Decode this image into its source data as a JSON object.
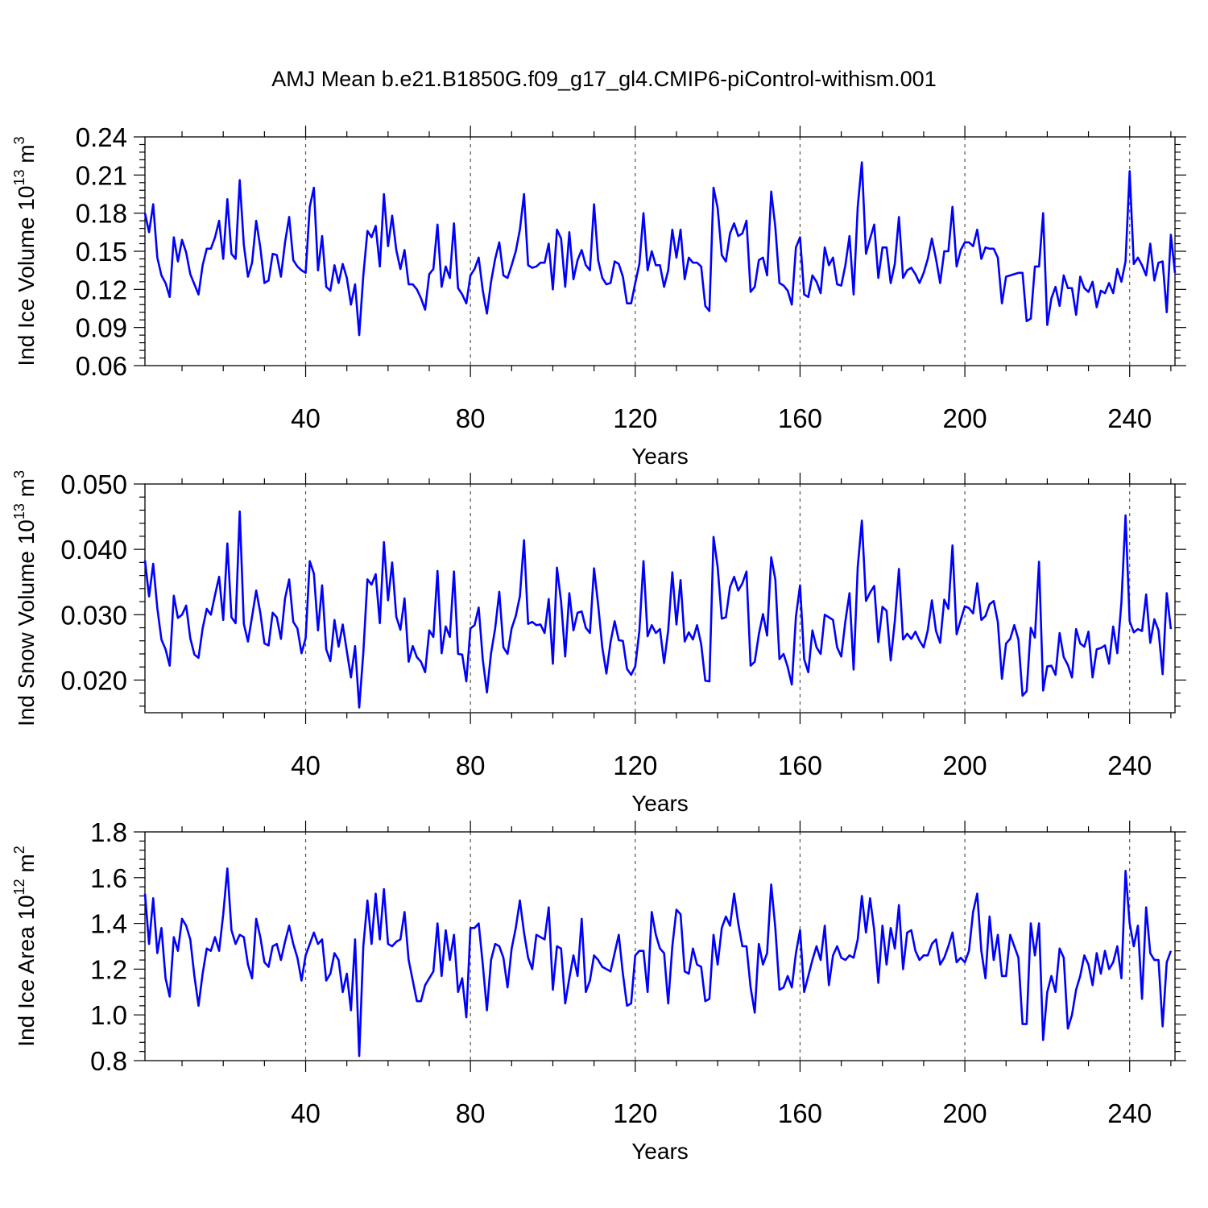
{
  "title": "AMJ Mean b.e21.B1850G.f09_g17_gl4.CMIP6-piControl-withism.001",
  "colors": {
    "line": "#0000ff",
    "axis": "#000000",
    "grid": "#555555"
  },
  "chart_data": [
    {
      "type": "line",
      "ylabel": "Ind Ice Volume 10",
      "ylabel_exp": "13",
      "ylabel_unit": " m",
      "ylabel_unit_exp": "3",
      "xlabel": "Years",
      "xlim": [
        1,
        251
      ],
      "ylim": [
        0.06,
        0.24
      ],
      "x_ticks": [
        40,
        80,
        120,
        160,
        200,
        240
      ],
      "x_tick_labels": [
        "40",
        "80",
        "120",
        "160",
        "200",
        "240"
      ],
      "y_ticks": [
        0.06,
        0.09,
        0.12,
        0.15,
        0.18,
        0.21,
        0.24
      ],
      "y_tick_labels": [
        "0.06",
        "0.09",
        "0.12",
        "0.15",
        "0.18",
        "0.21",
        "0.24"
      ],
      "grid": "dashed vertical at x ticks",
      "series": [
        {
          "name": "Ind Ice Volume",
          "x_start": 1,
          "values": [
            0.18,
            0.165,
            0.187,
            0.145,
            0.131,
            0.125,
            0.114,
            0.161,
            0.142,
            0.159,
            0.149,
            0.132,
            0.124,
            0.116,
            0.139,
            0.152,
            0.152,
            0.161,
            0.174,
            0.144,
            0.191,
            0.148,
            0.144,
            0.206,
            0.155,
            0.13,
            0.141,
            0.174,
            0.153,
            0.125,
            0.127,
            0.148,
            0.147,
            0.13,
            0.157,
            0.177,
            0.143,
            0.138,
            0.135,
            0.133,
            0.185,
            0.2,
            0.135,
            0.162,
            0.122,
            0.119,
            0.139,
            0.125,
            0.14,
            0.129,
            0.108,
            0.124,
            0.084,
            0.131,
            0.166,
            0.161,
            0.17,
            0.138,
            0.195,
            0.154,
            0.178,
            0.151,
            0.136,
            0.151,
            0.124,
            0.124,
            0.12,
            0.113,
            0.104,
            0.132,
            0.136,
            0.171,
            0.122,
            0.138,
            0.129,
            0.172,
            0.121,
            0.116,
            0.109,
            0.131,
            0.136,
            0.145,
            0.119,
            0.101,
            0.126,
            0.144,
            0.157,
            0.131,
            0.129,
            0.139,
            0.15,
            0.167,
            0.195,
            0.139,
            0.137,
            0.138,
            0.141,
            0.141,
            0.156,
            0.12,
            0.167,
            0.16,
            0.122,
            0.165,
            0.128,
            0.143,
            0.151,
            0.139,
            0.135,
            0.187,
            0.143,
            0.129,
            0.124,
            0.125,
            0.142,
            0.14,
            0.13,
            0.109,
            0.109,
            0.125,
            0.14,
            0.18,
            0.135,
            0.15,
            0.139,
            0.139,
            0.122,
            0.135,
            0.167,
            0.145,
            0.167,
            0.128,
            0.145,
            0.141,
            0.141,
            0.138,
            0.107,
            0.103,
            0.2,
            0.184,
            0.147,
            0.142,
            0.164,
            0.172,
            0.162,
            0.164,
            0.174,
            0.118,
            0.122,
            0.143,
            0.145,
            0.131,
            0.197,
            0.169,
            0.125,
            0.123,
            0.119,
            0.108,
            0.153,
            0.161,
            0.116,
            0.114,
            0.131,
            0.126,
            0.117,
            0.153,
            0.139,
            0.145,
            0.124,
            0.123,
            0.139,
            0.162,
            0.116,
            0.185,
            0.22,
            0.148,
            0.16,
            0.171,
            0.129,
            0.153,
            0.153,
            0.125,
            0.14,
            0.177,
            0.129,
            0.135,
            0.137,
            0.132,
            0.125,
            0.133,
            0.144,
            0.16,
            0.144,
            0.125,
            0.15,
            0.15,
            0.185,
            0.138,
            0.151,
            0.157,
            0.157,
            0.154,
            0.167,
            0.144,
            0.153,
            0.152,
            0.152,
            0.145,
            0.109,
            0.13,
            0.131,
            0.132,
            0.133,
            0.133,
            0.095,
            0.097,
            0.138,
            0.138,
            0.18,
            0.092,
            0.113,
            0.122,
            0.107,
            0.131,
            0.121,
            0.121,
            0.1,
            0.13,
            0.121,
            0.118,
            0.126,
            0.106,
            0.119,
            0.117,
            0.125,
            0.117,
            0.136,
            0.126,
            0.142,
            0.213,
            0.14,
            0.145,
            0.139,
            0.131,
            0.156,
            0.127,
            0.141,
            0.142,
            0.102,
            0.163,
            0.133
          ]
        }
      ]
    },
    {
      "type": "line",
      "ylabel": "Ind Snow Volume 10",
      "ylabel_exp": "13",
      "ylabel_unit": " m",
      "ylabel_unit_exp": "3",
      "xlabel": "Years",
      "xlim": [
        1,
        251
      ],
      "ylim": [
        0.015,
        0.05
      ],
      "x_ticks": [
        40,
        80,
        120,
        160,
        200,
        240
      ],
      "x_tick_labels": [
        "40",
        "80",
        "120",
        "160",
        "200",
        "240"
      ],
      "y_ticks": [
        0.02,
        0.03,
        0.04,
        0.05
      ],
      "y_tick_labels": [
        "0.020",
        "0.030",
        "0.040",
        "0.050"
      ],
      "grid": "dashed vertical at x ticks",
      "series": [
        {
          "name": "Ind Snow Volume",
          "x_start": 1,
          "values": [
            0.0383,
            0.0328,
            0.0378,
            0.031,
            0.0262,
            0.0247,
            0.0222,
            0.0329,
            0.0295,
            0.03,
            0.0314,
            0.0264,
            0.0239,
            0.0234,
            0.0279,
            0.0309,
            0.03,
            0.033,
            0.0358,
            0.0292,
            0.0409,
            0.0296,
            0.0287,
            0.0458,
            0.0286,
            0.0259,
            0.0297,
            0.0337,
            0.0303,
            0.0256,
            0.0253,
            0.0303,
            0.0296,
            0.0263,
            0.0325,
            0.0354,
            0.0289,
            0.0279,
            0.0241,
            0.0264,
            0.0382,
            0.0363,
            0.0276,
            0.0345,
            0.0247,
            0.0229,
            0.0292,
            0.0251,
            0.0285,
            0.0244,
            0.0204,
            0.0252,
            0.0158,
            0.0242,
            0.0354,
            0.0346,
            0.0362,
            0.0287,
            0.0411,
            0.0322,
            0.038,
            0.0297,
            0.0277,
            0.0325,
            0.0228,
            0.0252,
            0.0235,
            0.0228,
            0.0212,
            0.0276,
            0.0266,
            0.0367,
            0.0241,
            0.0282,
            0.0266,
            0.0366,
            0.024,
            0.0239,
            0.0198,
            0.0279,
            0.0284,
            0.0311,
            0.0231,
            0.0181,
            0.0241,
            0.0279,
            0.0335,
            0.025,
            0.024,
            0.0279,
            0.0298,
            0.0328,
            0.0414,
            0.0286,
            0.0289,
            0.0284,
            0.0285,
            0.0272,
            0.0324,
            0.0225,
            0.0372,
            0.032,
            0.0236,
            0.0333,
            0.0276,
            0.0303,
            0.0305,
            0.028,
            0.0272,
            0.0371,
            0.0315,
            0.025,
            0.021,
            0.0258,
            0.029,
            0.0261,
            0.026,
            0.0217,
            0.0208,
            0.0221,
            0.0275,
            0.0382,
            0.0267,
            0.0284,
            0.0272,
            0.0278,
            0.0226,
            0.0276,
            0.0365,
            0.0285,
            0.0353,
            0.0259,
            0.0273,
            0.0262,
            0.0284,
            0.0255,
            0.0199,
            0.0198,
            0.0419,
            0.0373,
            0.0294,
            0.0296,
            0.0342,
            0.0358,
            0.0337,
            0.0348,
            0.0366,
            0.0222,
            0.0228,
            0.027,
            0.0301,
            0.0268,
            0.0388,
            0.0354,
            0.0232,
            0.024,
            0.022,
            0.0193,
            0.0297,
            0.0345,
            0.0232,
            0.0212,
            0.0276,
            0.025,
            0.024,
            0.03,
            0.0296,
            0.0292,
            0.025,
            0.0236,
            0.029,
            0.0333,
            0.0216,
            0.0373,
            0.0444,
            0.0321,
            0.0334,
            0.0344,
            0.0258,
            0.0312,
            0.0306,
            0.023,
            0.029,
            0.037,
            0.0262,
            0.0271,
            0.0263,
            0.0274,
            0.026,
            0.025,
            0.0276,
            0.0322,
            0.0275,
            0.0257,
            0.0323,
            0.0309,
            0.0406,
            0.027,
            0.0292,
            0.0313,
            0.031,
            0.0302,
            0.0348,
            0.0292,
            0.0298,
            0.0316,
            0.0321,
            0.0289,
            0.0202,
            0.0256,
            0.0263,
            0.0284,
            0.0262,
            0.0176,
            0.0183,
            0.028,
            0.0265,
            0.0381,
            0.0184,
            0.0221,
            0.0222,
            0.0208,
            0.0272,
            0.0235,
            0.0223,
            0.0204,
            0.0278,
            0.0256,
            0.0251,
            0.0274,
            0.0204,
            0.0247,
            0.0249,
            0.0253,
            0.0225,
            0.0282,
            0.0241,
            0.0319,
            0.0452,
            0.029,
            0.0273,
            0.0278,
            0.0275,
            0.0331,
            0.0257,
            0.0293,
            0.0276,
            0.0209,
            0.0333,
            0.0278
          ]
        }
      ]
    },
    {
      "type": "line",
      "ylabel": "Ind Ice Area 10",
      "ylabel_exp": "12",
      "ylabel_unit": " m",
      "ylabel_unit_exp": "2",
      "xlabel": "Years",
      "xlim": [
        1,
        251
      ],
      "ylim": [
        0.8,
        1.8
      ],
      "x_ticks": [
        40,
        80,
        120,
        160,
        200,
        240
      ],
      "x_tick_labels": [
        "40",
        "80",
        "120",
        "160",
        "200",
        "240"
      ],
      "y_ticks": [
        0.8,
        1.0,
        1.2,
        1.4,
        1.6,
        1.8
      ],
      "y_tick_labels": [
        "0.8",
        "1.0",
        "1.2",
        "1.4",
        "1.6",
        "1.8"
      ],
      "grid": "dashed vertical at x ticks",
      "series": [
        {
          "name": "Ind Ice Area",
          "x_start": 1,
          "values": [
            1.53,
            1.31,
            1.51,
            1.27,
            1.38,
            1.16,
            1.08,
            1.34,
            1.28,
            1.42,
            1.39,
            1.33,
            1.17,
            1.04,
            1.18,
            1.29,
            1.28,
            1.34,
            1.28,
            1.44,
            1.64,
            1.37,
            1.31,
            1.35,
            1.34,
            1.22,
            1.16,
            1.42,
            1.34,
            1.23,
            1.21,
            1.3,
            1.31,
            1.24,
            1.32,
            1.39,
            1.31,
            1.25,
            1.15,
            1.26,
            1.31,
            1.36,
            1.31,
            1.33,
            1.15,
            1.18,
            1.27,
            1.24,
            1.1,
            1.18,
            1.02,
            1.33,
            0.82,
            1.3,
            1.5,
            1.31,
            1.53,
            1.33,
            1.55,
            1.31,
            1.3,
            1.32,
            1.33,
            1.45,
            1.24,
            1.15,
            1.06,
            1.06,
            1.13,
            1.16,
            1.19,
            1.4,
            1.17,
            1.37,
            1.24,
            1.35,
            1.1,
            1.16,
            0.99,
            1.38,
            1.38,
            1.4,
            1.22,
            1.02,
            1.24,
            1.31,
            1.3,
            1.25,
            1.12,
            1.29,
            1.38,
            1.5,
            1.36,
            1.25,
            1.2,
            1.35,
            1.34,
            1.33,
            1.47,
            1.11,
            1.3,
            1.29,
            1.05,
            1.16,
            1.26,
            1.17,
            1.42,
            1.1,
            1.15,
            1.26,
            1.24,
            1.21,
            1.2,
            1.19,
            1.27,
            1.35,
            1.18,
            1.04,
            1.05,
            1.26,
            1.28,
            1.28,
            1.1,
            1.45,
            1.35,
            1.29,
            1.27,
            1.05,
            1.3,
            1.46,
            1.44,
            1.19,
            1.18,
            1.29,
            1.22,
            1.21,
            1.06,
            1.07,
            1.35,
            1.22,
            1.38,
            1.43,
            1.39,
            1.53,
            1.4,
            1.3,
            1.3,
            1.12,
            1.01,
            1.31,
            1.22,
            1.27,
            1.57,
            1.38,
            1.11,
            1.12,
            1.17,
            1.12,
            1.27,
            1.37,
            1.1,
            1.17,
            1.24,
            1.3,
            1.24,
            1.39,
            1.13,
            1.26,
            1.3,
            1.25,
            1.24,
            1.26,
            1.25,
            1.33,
            1.52,
            1.36,
            1.51,
            1.37,
            1.14,
            1.39,
            1.22,
            1.38,
            1.29,
            1.48,
            1.2,
            1.36,
            1.37,
            1.28,
            1.24,
            1.26,
            1.26,
            1.31,
            1.33,
            1.22,
            1.25,
            1.3,
            1.36,
            1.23,
            1.25,
            1.23,
            1.28,
            1.45,
            1.53,
            1.28,
            1.16,
            1.43,
            1.24,
            1.35,
            1.17,
            1.17,
            1.35,
            1.3,
            1.25,
            0.96,
            0.96,
            1.4,
            1.26,
            1.4,
            0.89,
            1.1,
            1.17,
            1.1,
            1.29,
            1.25,
            0.94,
            1.0,
            1.11,
            1.17,
            1.26,
            1.22,
            1.13,
            1.27,
            1.18,
            1.28,
            1.2,
            1.23,
            1.3,
            1.16,
            1.63,
            1.4,
            1.3,
            1.39,
            1.07,
            1.47,
            1.27,
            1.24,
            1.24,
            0.95,
            1.23,
            1.28
          ]
        }
      ]
    }
  ]
}
